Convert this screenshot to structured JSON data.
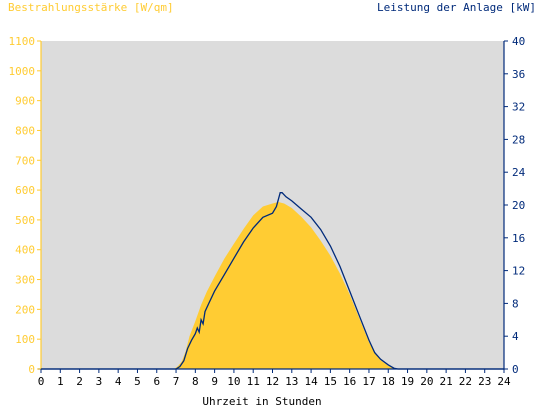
{
  "chart_data": {
    "type": "area",
    "left_axis_title": "Bestrahlungsstärke [W/qm]",
    "right_axis_title": "Leistung der Anlage [kW]",
    "xlabel": "Uhrzeit in Stunden",
    "x_ticks": [
      "0",
      "1",
      "2",
      "3",
      "4",
      "5",
      "6",
      "7",
      "8",
      "9",
      "10",
      "11",
      "12",
      "13",
      "14",
      "15",
      "16",
      "17",
      "18",
      "19",
      "20",
      "21",
      "22",
      "23",
      "24"
    ],
    "xlim": [
      0,
      24
    ],
    "ylim_left": [
      0,
      1100
    ],
    "ylim_right": [
      0,
      40
    ],
    "left_ticks": [
      "0",
      "100",
      "200",
      "300",
      "400",
      "500",
      "600",
      "700",
      "800",
      "900",
      "1000",
      "1100"
    ],
    "right_ticks": [
      "0",
      "4",
      "8",
      "12",
      "16",
      "20",
      "24",
      "28",
      "32",
      "36",
      "40"
    ],
    "colors": {
      "irradiance": "#ffcc33",
      "power": "#002a7a",
      "plot_bg": "#dcdcdc",
      "left_axis_text": "#ffcc33",
      "right_axis_text": "#002a7a"
    },
    "series": [
      {
        "name": "Bestrahlungsstärke",
        "axis": "left",
        "x": [
          0,
          6.9,
          7.1,
          7.3,
          7.5,
          7.7,
          8.0,
          8.3,
          8.6,
          9.0,
          9.5,
          10.0,
          10.5,
          11.0,
          11.5,
          12.0,
          12.3,
          12.6,
          13.0,
          13.5,
          14.0,
          14.5,
          15.0,
          15.5,
          16.0,
          16.5,
          17.0,
          17.3,
          17.6,
          18.0,
          18.2,
          18.4,
          24
        ],
        "values": [
          0,
          0,
          10,
          25,
          60,
          110,
          160,
          215,
          260,
          310,
          370,
          420,
          470,
          515,
          545,
          555,
          560,
          555,
          540,
          510,
          475,
          430,
          380,
          320,
          250,
          170,
          90,
          55,
          30,
          10,
          5,
          0,
          0
        ]
      },
      {
        "name": "Leistung der Anlage",
        "axis": "right",
        "x": [
          0,
          7.0,
          7.2,
          7.4,
          7.6,
          7.8,
          8.0,
          8.1,
          8.2,
          8.3,
          8.4,
          8.5,
          8.7,
          9.0,
          9.5,
          10.0,
          10.5,
          11.0,
          11.5,
          12.0,
          12.2,
          12.4,
          12.5,
          12.7,
          13.0,
          13.5,
          14.0,
          14.5,
          15.0,
          15.5,
          16.0,
          16.5,
          17.0,
          17.3,
          17.6,
          18.0,
          18.3,
          18.5,
          24
        ],
        "values": [
          0,
          0,
          0.3,
          1.0,
          2.5,
          3.5,
          4.3,
          5.0,
          4.5,
          6.0,
          5.5,
          7.0,
          8.0,
          9.5,
          11.5,
          13.5,
          15.5,
          17.2,
          18.5,
          19.0,
          19.8,
          21.5,
          21.5,
          21.0,
          20.5,
          19.5,
          18.5,
          17.0,
          15.0,
          12.5,
          9.5,
          6.5,
          3.5,
          2.0,
          1.2,
          0.5,
          0.1,
          0,
          0
        ]
      }
    ]
  }
}
